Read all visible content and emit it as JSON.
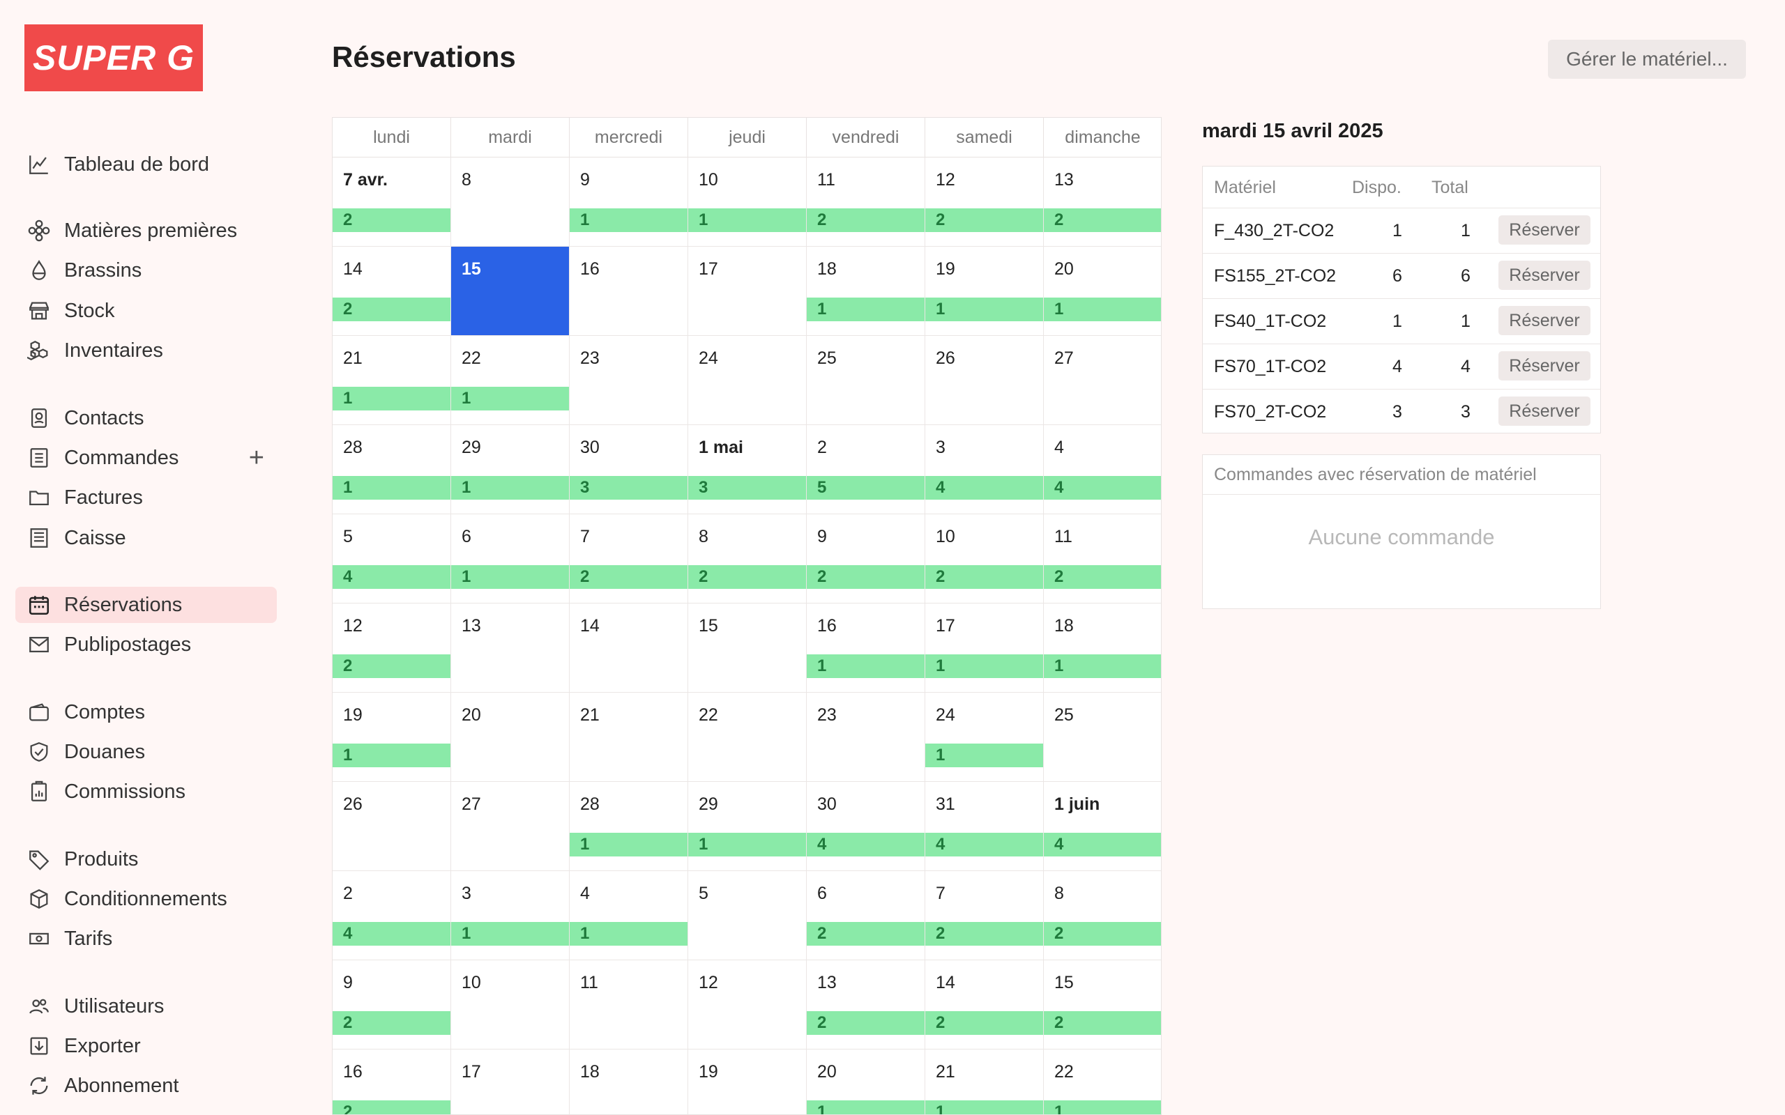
{
  "brand": {
    "logo_text": "SUPER G",
    "accent": "#f04a4a"
  },
  "sidebar": {
    "items": [
      {
        "label": "Tableau de bord",
        "icon": "chart-line-icon"
      },
      {
        "label": "Matières premières",
        "icon": "flower-icon"
      },
      {
        "label": "Brassins",
        "icon": "drop-icon"
      },
      {
        "label": "Stock",
        "icon": "store-icon"
      },
      {
        "label": "Inventaires",
        "icon": "boxes-icon"
      },
      {
        "label": "Contacts",
        "icon": "contact-icon"
      },
      {
        "label": "Commandes",
        "icon": "list-icon"
      },
      {
        "label": "Factures",
        "icon": "folder-icon"
      },
      {
        "label": "Caisse",
        "icon": "receipt-icon"
      },
      {
        "label": "Réservations",
        "icon": "calendar-icon"
      },
      {
        "label": "Publipostages",
        "icon": "mail-icon"
      },
      {
        "label": "Comptes",
        "icon": "wallet-icon"
      },
      {
        "label": "Douanes",
        "icon": "shield-icon"
      },
      {
        "label": "Commissions",
        "icon": "clipboard-chart-icon"
      },
      {
        "label": "Produits",
        "icon": "tag-icon"
      },
      {
        "label": "Conditionnements",
        "icon": "package-icon"
      },
      {
        "label": "Tarifs",
        "icon": "banknote-icon"
      },
      {
        "label": "Utilisateurs",
        "icon": "users-icon"
      },
      {
        "label": "Exporter",
        "icon": "export-icon"
      },
      {
        "label": "Abonnement",
        "icon": "refresh-icon"
      }
    ],
    "add_symbol": "+"
  },
  "header": {
    "title": "Réservations",
    "manage_button": "Gérer le matériel..."
  },
  "calendar": {
    "weekdays": [
      "lundi",
      "mardi",
      "mercredi",
      "jeudi",
      "vendredi",
      "samedi",
      "dimanche"
    ],
    "weeks": [
      [
        {
          "d": "7 avr.",
          "n": "2",
          "b": true
        },
        {
          "d": "8",
          "n": ""
        },
        {
          "d": "9",
          "n": "1"
        },
        {
          "d": "10",
          "n": "1"
        },
        {
          "d": "11",
          "n": "2"
        },
        {
          "d": "12",
          "n": "2"
        },
        {
          "d": "13",
          "n": "2"
        }
      ],
      [
        {
          "d": "14",
          "n": "2"
        },
        {
          "d": "15",
          "n": "",
          "sel": true
        },
        {
          "d": "16",
          "n": ""
        },
        {
          "d": "17",
          "n": ""
        },
        {
          "d": "18",
          "n": "1"
        },
        {
          "d": "19",
          "n": "1"
        },
        {
          "d": "20",
          "n": "1"
        }
      ],
      [
        {
          "d": "21",
          "n": "1"
        },
        {
          "d": "22",
          "n": "1"
        },
        {
          "d": "23",
          "n": ""
        },
        {
          "d": "24",
          "n": ""
        },
        {
          "d": "25",
          "n": ""
        },
        {
          "d": "26",
          "n": ""
        },
        {
          "d": "27",
          "n": ""
        }
      ],
      [
        {
          "d": "28",
          "n": "1"
        },
        {
          "d": "29",
          "n": "1"
        },
        {
          "d": "30",
          "n": "3"
        },
        {
          "d": "1 mai",
          "n": "3",
          "b": true
        },
        {
          "d": "2",
          "n": "5"
        },
        {
          "d": "3",
          "n": "4"
        },
        {
          "d": "4",
          "n": "4"
        }
      ],
      [
        {
          "d": "5",
          "n": "4"
        },
        {
          "d": "6",
          "n": "1"
        },
        {
          "d": "7",
          "n": "2"
        },
        {
          "d": "8",
          "n": "2"
        },
        {
          "d": "9",
          "n": "2"
        },
        {
          "d": "10",
          "n": "2"
        },
        {
          "d": "11",
          "n": "2"
        }
      ],
      [
        {
          "d": "12",
          "n": "2"
        },
        {
          "d": "13",
          "n": ""
        },
        {
          "d": "14",
          "n": ""
        },
        {
          "d": "15",
          "n": ""
        },
        {
          "d": "16",
          "n": "1"
        },
        {
          "d": "17",
          "n": "1"
        },
        {
          "d": "18",
          "n": "1"
        }
      ],
      [
        {
          "d": "19",
          "n": "1"
        },
        {
          "d": "20",
          "n": ""
        },
        {
          "d": "21",
          "n": ""
        },
        {
          "d": "22",
          "n": ""
        },
        {
          "d": "23",
          "n": ""
        },
        {
          "d": "24",
          "n": "1"
        },
        {
          "d": "25",
          "n": ""
        }
      ],
      [
        {
          "d": "26",
          "n": ""
        },
        {
          "d": "27",
          "n": ""
        },
        {
          "d": "28",
          "n": "1"
        },
        {
          "d": "29",
          "n": "1"
        },
        {
          "d": "30",
          "n": "4"
        },
        {
          "d": "31",
          "n": "4"
        },
        {
          "d": "1 juin",
          "n": "4",
          "b": true
        }
      ],
      [
        {
          "d": "2",
          "n": "4"
        },
        {
          "d": "3",
          "n": "1"
        },
        {
          "d": "4",
          "n": "1"
        },
        {
          "d": "5",
          "n": ""
        },
        {
          "d": "6",
          "n": "2"
        },
        {
          "d": "7",
          "n": "2"
        },
        {
          "d": "8",
          "n": "2"
        }
      ],
      [
        {
          "d": "9",
          "n": "2"
        },
        {
          "d": "10",
          "n": ""
        },
        {
          "d": "11",
          "n": ""
        },
        {
          "d": "12",
          "n": ""
        },
        {
          "d": "13",
          "n": "2"
        },
        {
          "d": "14",
          "n": "2"
        },
        {
          "d": "15",
          "n": "2"
        }
      ],
      [
        {
          "d": "16",
          "n": "2"
        },
        {
          "d": "17",
          "n": ""
        },
        {
          "d": "18",
          "n": ""
        },
        {
          "d": "19",
          "n": ""
        },
        {
          "d": "20",
          "n": "1"
        },
        {
          "d": "21",
          "n": "1"
        },
        {
          "d": "22",
          "n": "1"
        }
      ]
    ],
    "selected_color": "#2a62e6",
    "bar_color": "#8aeaa8"
  },
  "detail": {
    "title": "mardi 15 avril 2025",
    "columns": {
      "material": "Matériel",
      "available": "Dispo.",
      "total": "Total"
    },
    "rows": [
      {
        "name": "F_430_2T-CO2",
        "available": "1",
        "total": "1",
        "action": "Réserver"
      },
      {
        "name": "FS155_2T-CO2",
        "available": "6",
        "total": "6",
        "action": "Réserver"
      },
      {
        "name": "FS40_1T-CO2",
        "available": "1",
        "total": "1",
        "action": "Réserver"
      },
      {
        "name": "FS70_1T-CO2",
        "available": "4",
        "total": "4",
        "action": "Réserver"
      },
      {
        "name": "FS70_2T-CO2",
        "available": "3",
        "total": "3",
        "action": "Réserver"
      }
    ],
    "orders_title": "Commandes avec réservation de matériel",
    "orders_empty": "Aucune commande"
  }
}
